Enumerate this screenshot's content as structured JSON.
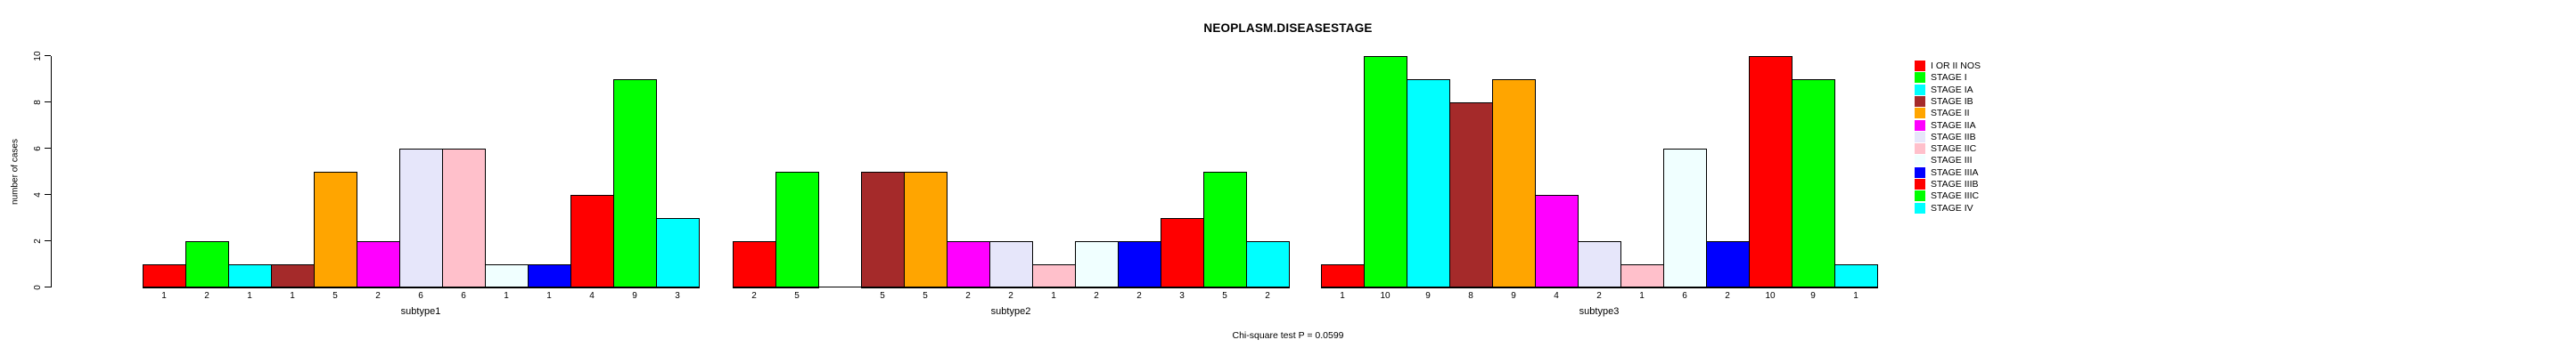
{
  "title": "NEOPLASM.DISEASESTAGE",
  "caption": "Chi-square test P = 0.0599",
  "y_axis": {
    "label": "number of cases",
    "tick_labels": [
      "0",
      "2",
      "4",
      "6",
      "8",
      "10"
    ]
  },
  "chart_data": {
    "type": "bar",
    "title": "NEOPLASM.DISEASESTAGE",
    "xlabel": "",
    "ylabel": "number of cases",
    "ylim": [
      0,
      10
    ],
    "y_ticks": [
      0,
      2,
      4,
      6,
      8,
      10
    ],
    "grid": false,
    "legend_position": "right",
    "categories": [
      "I OR II NOS",
      "STAGE I",
      "STAGE IA",
      "STAGE IB",
      "STAGE II",
      "STAGE IIA",
      "STAGE IIB",
      "STAGE IIC",
      "STAGE III",
      "STAGE IIIA",
      "STAGE IIIB",
      "STAGE IIIC",
      "STAGE IV"
    ],
    "series_colors": [
      "#FF0000",
      "#00FF00",
      "#00FFFF",
      "#A52A2A",
      "#FFA500",
      "#FF00FF",
      "#E6E6FA",
      "#FFC0CB",
      "#F0FFFF",
      "#0000FF",
      "#FF0000",
      "#00FF00",
      "#00FFFF"
    ],
    "groups": [
      {
        "label": "subtype1",
        "values": [
          1,
          2,
          1,
          1,
          5,
          2,
          6,
          6,
          1,
          1,
          4,
          9,
          3
        ]
      },
      {
        "label": "subtype2",
        "values": [
          2,
          5,
          0,
          5,
          5,
          2,
          2,
          1,
          2,
          2,
          3,
          5,
          2
        ]
      },
      {
        "label": "subtype3",
        "values": [
          1,
          10,
          9,
          8,
          9,
          4,
          2,
          1,
          6,
          2,
          10,
          9,
          1
        ]
      }
    ],
    "bar_value_labels": true,
    "zero_value_labels_hidden": true,
    "caption": "Chi-square test P = 0.0599"
  },
  "legend": {
    "items": [
      {
        "label": "I OR II NOS",
        "color": "#FF0000"
      },
      {
        "label": "STAGE I",
        "color": "#00FF00"
      },
      {
        "label": "STAGE IA",
        "color": "#00FFFF"
      },
      {
        "label": "STAGE IB",
        "color": "#A52A2A"
      },
      {
        "label": "STAGE II",
        "color": "#FFA500"
      },
      {
        "label": "STAGE IIA",
        "color": "#FF00FF"
      },
      {
        "label": "STAGE IIB",
        "color": "#E6E6FA"
      },
      {
        "label": "STAGE IIC",
        "color": "#FFC0CB"
      },
      {
        "label": "STAGE III",
        "color": "#F0FFFF"
      },
      {
        "label": "STAGE IIIA",
        "color": "#0000FF"
      },
      {
        "label": "STAGE IIIB",
        "color": "#FF0000"
      },
      {
        "label": "STAGE IIIC",
        "color": "#00FF00"
      },
      {
        "label": "STAGE IV",
        "color": "#00FFFF"
      }
    ]
  }
}
